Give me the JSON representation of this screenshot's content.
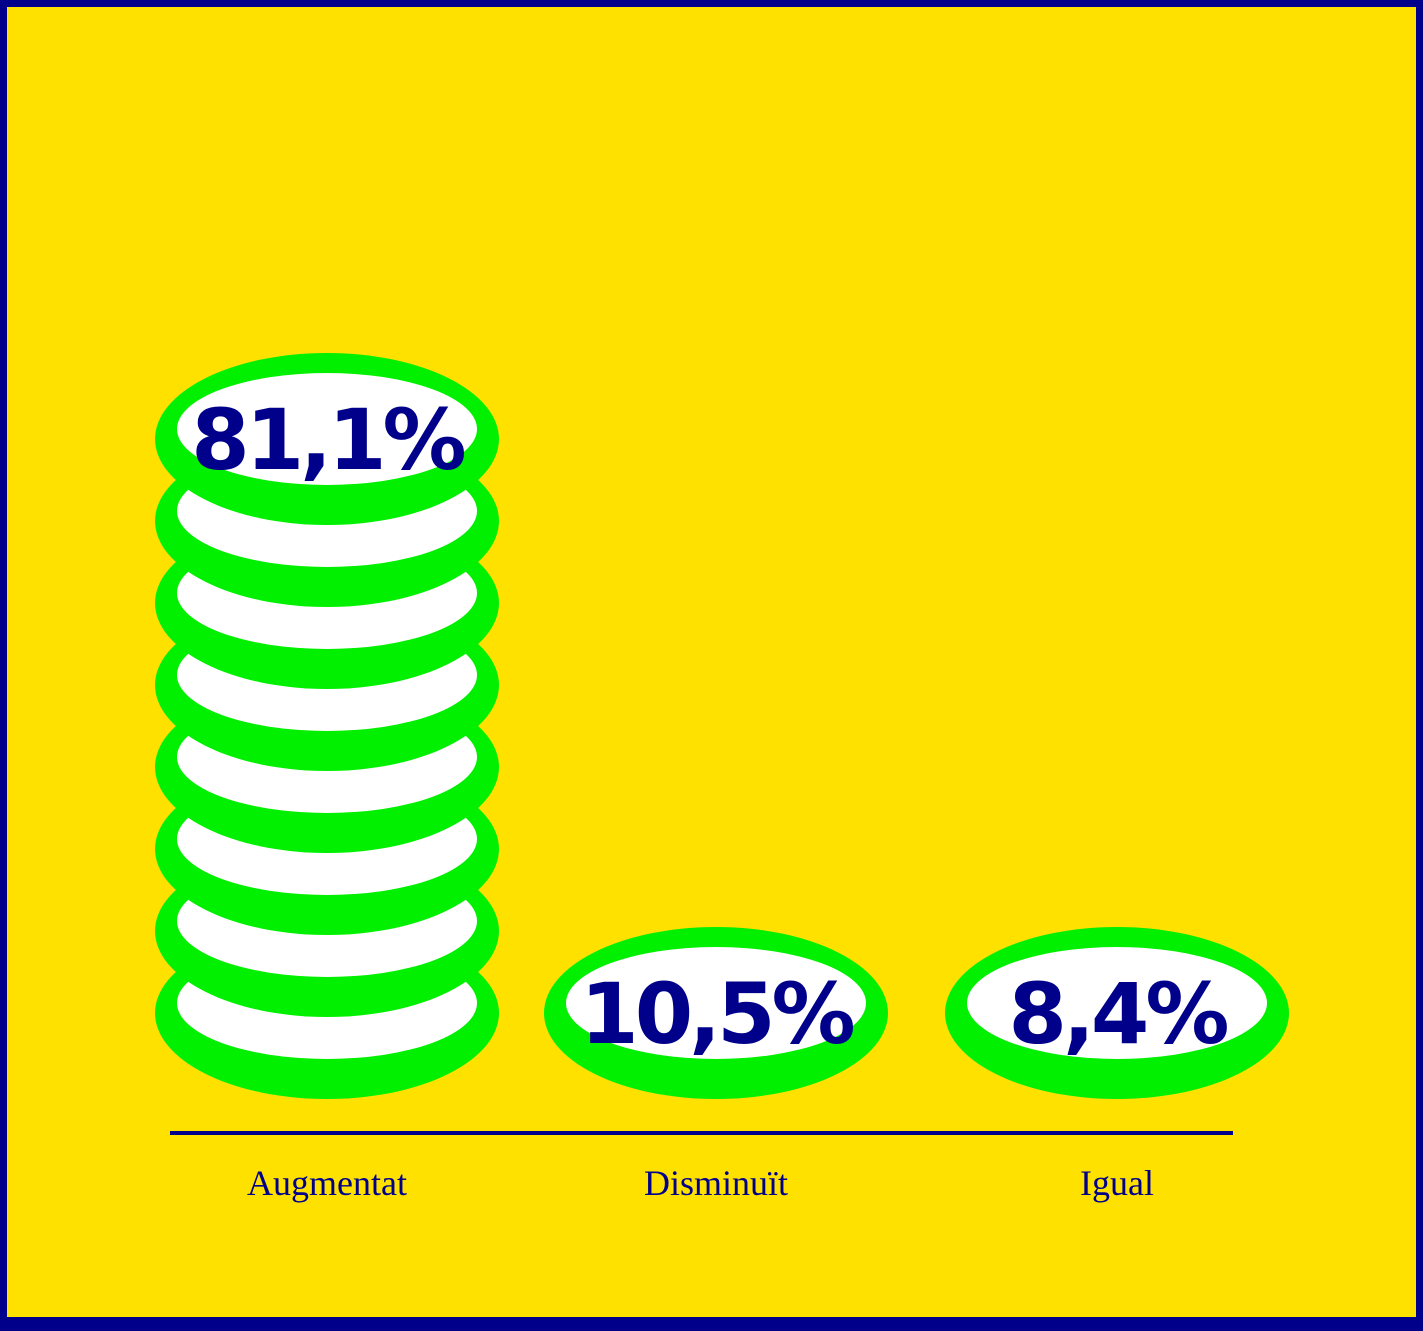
{
  "chart_data": {
    "type": "bar",
    "style": "stacked-coins",
    "categories": [
      "Augmentat",
      "Disminuït",
      "Igual"
    ],
    "values": [
      81.1,
      10.5,
      8.4
    ],
    "value_labels": [
      "81,1%",
      "10,5%",
      "8,4%"
    ],
    "unit": "%",
    "title": "",
    "xlabel": "",
    "ylabel": "",
    "ylim": [
      0,
      100
    ],
    "grid": false,
    "legend": "none"
  },
  "colors": {
    "background": "#ffe100",
    "frame": "#00008b",
    "coin_rim": "#00f000",
    "coin_face": "#ffffff",
    "text": "#00008b",
    "baseline": "#00008b"
  }
}
